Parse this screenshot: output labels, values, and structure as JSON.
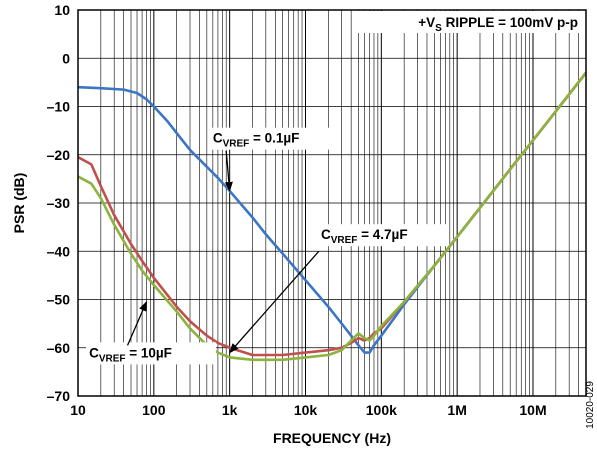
{
  "chart_data": {
    "type": "line",
    "xlabel": "FREQUENCY (Hz)",
    "ylabel": "PSR (dB)",
    "x_scale": "log",
    "xlim": [
      10,
      50000000
    ],
    "ylim": [
      -70,
      10
    ],
    "grid": true,
    "x_ticks": [
      10,
      100,
      1000,
      10000,
      100000,
      1000000,
      10000000
    ],
    "x_tick_labels": [
      "10",
      "100",
      "1k",
      "10k",
      "100k",
      "1M",
      "10M"
    ],
    "y_ticks": [
      10,
      0,
      -10,
      -20,
      -30,
      -40,
      -50,
      -60,
      -70
    ],
    "y_tick_labels": [
      "10",
      "0",
      "–10",
      "–20",
      "–30",
      "–40",
      "–50",
      "–60",
      "–70"
    ],
    "condition": {
      "prefix": "+V",
      "sub": "S",
      "rest": " RIPPLE = 100mV p-p"
    },
    "series": [
      {
        "key": "cvref_0_1uF",
        "color": "#3a76c4",
        "x": [
          10,
          20,
          40,
          60,
          80,
          100,
          150,
          200,
          300,
          500,
          700,
          1000,
          2000,
          3000,
          5000,
          10000,
          20000,
          30000,
          40000,
          50000,
          60000,
          70000,
          80000,
          100000,
          200000,
          500000,
          1000000,
          2000000,
          5000000,
          10000000,
          20000000,
          50000000
        ],
        "y": [
          -6,
          -6.2,
          -6.5,
          -7.2,
          -8.5,
          -10,
          -13,
          -15.5,
          -19,
          -22.5,
          -24.8,
          -27.5,
          -33,
          -36.5,
          -40.5,
          -46,
          -51.5,
          -55,
          -57.5,
          -59.5,
          -61,
          -61,
          -59.5,
          -57.5,
          -51,
          -43,
          -37,
          -31,
          -23,
          -17,
          -11,
          -3
        ]
      },
      {
        "key": "cvref_4_7uF",
        "color": "#c0504d",
        "x": [
          10,
          15,
          20,
          30,
          50,
          70,
          100,
          200,
          300,
          500,
          700,
          1000,
          2000,
          5000,
          10000,
          20000,
          30000,
          40000,
          50000,
          60000,
          70000,
          80000,
          100000,
          200000,
          500000,
          1000000,
          2000000,
          5000000,
          10000000,
          20000000,
          50000000
        ],
        "y": [
          -20.5,
          -22,
          -26.5,
          -32.5,
          -38.5,
          -42,
          -45.5,
          -51.5,
          -54.5,
          -57.5,
          -59,
          -60,
          -61.5,
          -61.5,
          -61,
          -60.5,
          -60,
          -59,
          -58,
          -58.5,
          -58,
          -57,
          -56,
          -50.5,
          -43,
          -37,
          -31,
          -23,
          -17,
          -11,
          -3
        ]
      },
      {
        "key": "cvref_10uF",
        "color": "#8db33f",
        "x": [
          10,
          15,
          20,
          30,
          50,
          70,
          100,
          200,
          300,
          500,
          700,
          1000,
          2000,
          5000,
          10000,
          20000,
          30000,
          40000,
          50000,
          60000,
          70000,
          80000,
          100000,
          200000,
          500000,
          1000000,
          2000000,
          5000000,
          10000000,
          20000000,
          50000000
        ],
        "y": [
          -24.5,
          -26,
          -29,
          -34.5,
          -40.5,
          -44,
          -47,
          -52.5,
          -56,
          -59.5,
          -61,
          -62,
          -62.5,
          -62.5,
          -62,
          -61.5,
          -60.5,
          -58.5,
          -57,
          -58,
          -58.5,
          -57.5,
          -55.5,
          -50.5,
          -43,
          -37,
          -31,
          -23,
          -17,
          -11,
          -3
        ]
      }
    ],
    "annotations": [
      {
        "key": "ann_0_1uF",
        "c": "C",
        "sub": "VREF",
        "rest": " = 0.1µF",
        "text_x": 600,
        "text_y": -17.5,
        "arrow_from": [
          900,
          -19.2
        ],
        "arrow_to": [
          1000,
          -27.5
        ]
      },
      {
        "key": "ann_4_7uF",
        "c": "C",
        "sub": "VREF",
        "rest": " = 4.7µF",
        "text_x": 16000,
        "text_y": -37.5,
        "arrow_from": [
          15000,
          -40
        ],
        "arrow_to": [
          1000,
          -61
        ]
      },
      {
        "key": "ann_10uF",
        "c": "C",
        "sub": "VREF",
        "rest": " = 10µF",
        "text_x": 14,
        "text_y": -62,
        "arrow_from": [
          45,
          -59.5
        ],
        "arrow_to": [
          80,
          -50.5
        ]
      }
    ],
    "figure_id": "10020-029"
  }
}
